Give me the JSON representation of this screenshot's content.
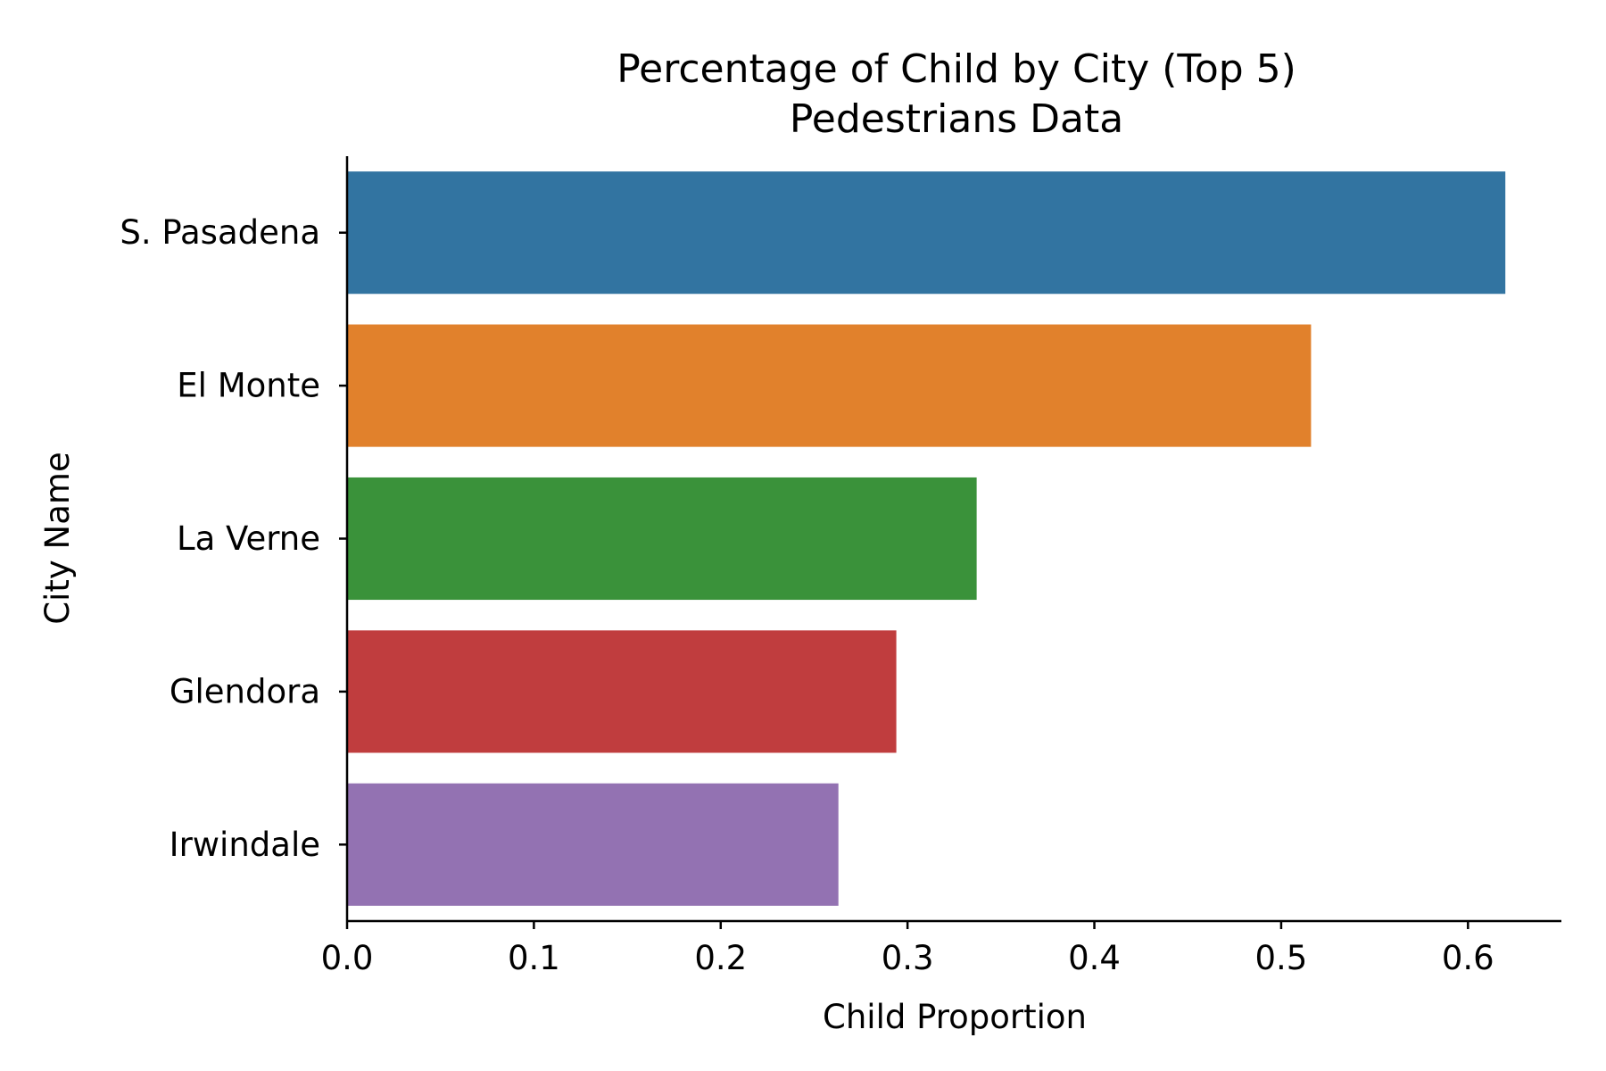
{
  "chart_data": {
    "type": "bar",
    "orientation": "horizontal",
    "title": "Percentage of Child by City (Top 5)",
    "subtitle": "Pedestrians Data",
    "xlabel": "Child Proportion",
    "ylabel": "City Name",
    "categories": [
      "S. Pasadena",
      "El Monte",
      "La Verne",
      "Glendora",
      "Irwindale"
    ],
    "values": [
      0.62,
      0.516,
      0.337,
      0.294,
      0.263
    ],
    "colors": [
      "#3274a1",
      "#e1812c",
      "#3a923a",
      "#c03d3e",
      "#9372b2"
    ],
    "xlim": [
      0,
      0.65
    ],
    "xticks": [
      0.0,
      0.1,
      0.2,
      0.3,
      0.4,
      0.5,
      0.6
    ],
    "xtick_labels": [
      "0.0",
      "0.1",
      "0.2",
      "0.3",
      "0.4",
      "0.5",
      "0.6"
    ],
    "grid": false,
    "legend": "none"
  }
}
